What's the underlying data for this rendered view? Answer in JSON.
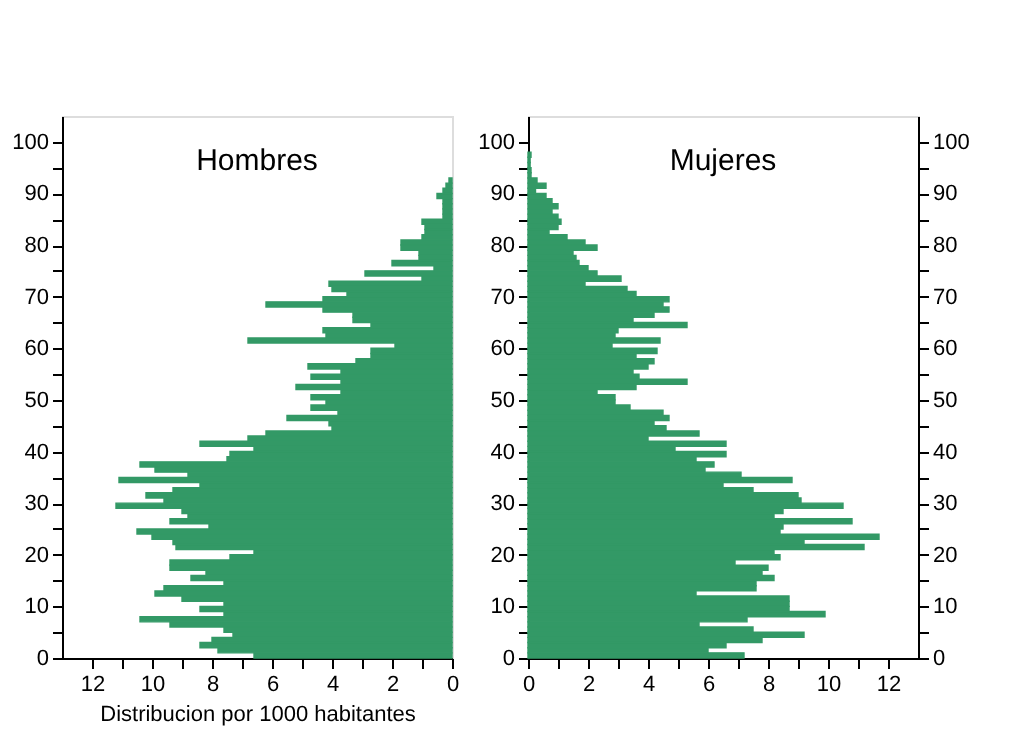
{
  "chart_data": [
    {
      "type": "bar",
      "orientation": "horizontal",
      "title": "Hombres",
      "xlabel": "Distribucion por 1000 habitantes",
      "x": [
        0,
        1,
        2,
        3,
        4,
        5,
        6,
        7,
        8,
        9,
        10,
        11,
        12,
        13,
        14,
        15,
        16,
        17,
        18,
        19,
        20,
        21,
        22,
        23,
        24,
        25,
        26,
        27,
        28,
        29,
        30,
        31,
        32,
        33,
        34,
        35,
        36,
        37,
        38,
        39,
        40,
        41,
        42,
        43,
        44,
        45,
        46,
        47,
        48,
        49,
        50,
        51,
        52,
        53,
        54,
        55,
        56,
        57,
        58,
        59,
        60,
        61,
        62,
        63,
        64,
        65,
        66,
        67,
        68,
        69,
        70,
        71,
        72,
        73,
        74,
        75,
        76,
        77,
        78,
        79,
        80,
        81,
        82,
        83,
        84,
        85,
        86,
        87,
        88,
        89,
        90,
        91,
        92
      ],
      "series": [
        {
          "color": "#339966",
          "values": [
            6.6,
            7.8,
            8.4,
            8.0,
            7.3,
            7.6,
            9.4,
            10.4,
            7.6,
            8.4,
            7.6,
            9.0,
            9.9,
            9.6,
            7.6,
            8.7,
            8.2,
            9.4,
            9.4,
            7.4,
            6.6,
            9.2,
            9.3,
            10.0,
            10.5,
            8.1,
            9.4,
            8.8,
            9.0,
            11.2,
            9.6,
            10.2,
            9.3,
            8.4,
            11.1,
            8.8,
            9.9,
            10.4,
            7.5,
            7.4,
            6.6,
            8.4,
            6.8,
            6.2,
            4.0,
            4.1,
            5.5,
            3.8,
            4.7,
            4.2,
            4.7,
            3.7,
            5.2,
            3.7,
            4.7,
            3.7,
            4.8,
            3.2,
            2.7,
            2.7,
            1.9,
            6.8,
            4.2,
            4.3,
            2.7,
            3.3,
            3.3,
            4.3,
            6.2,
            4.3,
            3.5,
            4.0,
            4.1,
            1.0,
            2.9,
            0.6,
            2.0,
            1.1,
            1.1,
            1.7,
            1.7,
            1.0,
            0.9,
            0.9,
            1.0,
            0.3,
            0.3,
            0.3,
            0.3,
            0.5,
            0.3,
            0.2,
            0.1
          ]
        }
      ],
      "xlim": [
        13,
        0
      ],
      "xticks": [
        12,
        {
          "value": 11,
          "label": null
        },
        10,
        {
          "value": 9,
          "label": null
        },
        8,
        {
          "value": 7,
          "label": null
        },
        6,
        {
          "value": 5,
          "label": null
        },
        4,
        {
          "value": 3,
          "label": null
        },
        2,
        {
          "value": 1,
          "label": null
        },
        0
      ],
      "ylim": [
        0,
        105
      ],
      "yticks": [
        0,
        {
          "value": 5,
          "label": null
        },
        10,
        {
          "value": 15,
          "label": null
        },
        20,
        {
          "value": 25,
          "label": null
        },
        30,
        {
          "value": 35,
          "label": null
        },
        40,
        {
          "value": 45,
          "label": null
        },
        50,
        {
          "value": 55,
          "label": null
        },
        60,
        {
          "value": 65,
          "label": null
        },
        70,
        {
          "value": 75,
          "label": null
        },
        80,
        {
          "value": 85,
          "label": null
        },
        90,
        {
          "value": 95,
          "label": null
        },
        100
      ],
      "grid": false,
      "legend": false
    },
    {
      "type": "bar",
      "orientation": "horizontal",
      "title": "Mujeres",
      "x": [
        0,
        1,
        2,
        3,
        4,
        5,
        6,
        7,
        8,
        9,
        10,
        11,
        12,
        13,
        14,
        15,
        16,
        17,
        18,
        19,
        20,
        21,
        22,
        23,
        24,
        25,
        26,
        27,
        28,
        29,
        30,
        31,
        32,
        33,
        34,
        35,
        36,
        37,
        38,
        39,
        40,
        41,
        42,
        43,
        44,
        45,
        46,
        47,
        48,
        49,
        50,
        51,
        52,
        53,
        54,
        55,
        56,
        57,
        58,
        59,
        60,
        61,
        62,
        63,
        64,
        65,
        66,
        67,
        68,
        69,
        70,
        71,
        72,
        73,
        74,
        75,
        76,
        77,
        78,
        79,
        80,
        81,
        82,
        83,
        84,
        85,
        86,
        87,
        88,
        89,
        90,
        91,
        92,
        93,
        94,
        95,
        96,
        97
      ],
      "series": [
        {
          "color": "#339966",
          "values": [
            7.2,
            6.0,
            6.6,
            7.8,
            9.2,
            7.5,
            5.7,
            7.3,
            9.9,
            8.7,
            8.7,
            8.7,
            5.6,
            7.6,
            7.6,
            8.2,
            7.8,
            8.0,
            6.9,
            8.4,
            8.2,
            11.2,
            9.2,
            11.7,
            8.4,
            8.5,
            10.8,
            8.2,
            8.5,
            10.5,
            9.1,
            9.0,
            7.5,
            6.5,
            8.8,
            7.1,
            5.9,
            6.2,
            5.6,
            6.6,
            4.9,
            6.6,
            4.0,
            5.7,
            4.6,
            4.2,
            4.7,
            4.5,
            3.4,
            2.9,
            2.9,
            2.3,
            3.6,
            5.3,
            3.7,
            3.5,
            4.0,
            4.2,
            3.6,
            4.3,
            2.8,
            4.4,
            2.9,
            3.0,
            5.3,
            3.5,
            4.2,
            4.7,
            4.5,
            4.7,
            3.6,
            3.3,
            1.9,
            3.1,
            2.3,
            2.0,
            1.7,
            1.6,
            1.5,
            2.3,
            1.9,
            1.3,
            0.7,
            1.0,
            1.1,
            1.0,
            0.8,
            1.0,
            0.8,
            0.6,
            0.25,
            0.6,
            0.3,
            0.1,
            0.1,
            0.07,
            0.07,
            0.1
          ]
        }
      ],
      "xlim": [
        0,
        13
      ],
      "xticks": [
        0,
        {
          "value": 1,
          "label": null
        },
        2,
        {
          "value": 3,
          "label": null
        },
        4,
        {
          "value": 5,
          "label": null
        },
        6,
        {
          "value": 7,
          "label": null
        },
        8,
        {
          "value": 9,
          "label": null
        },
        10,
        {
          "value": 11,
          "label": null
        },
        12
      ],
      "ylim": [
        0,
        105
      ],
      "yticks": [
        0,
        {
          "value": 5,
          "label": null
        },
        10,
        {
          "value": 15,
          "label": null
        },
        20,
        {
          "value": 25,
          "label": null
        },
        30,
        {
          "value": 35,
          "label": null
        },
        40,
        {
          "value": 45,
          "label": null
        },
        50,
        {
          "value": 55,
          "label": null
        },
        60,
        {
          "value": 65,
          "label": null
        },
        70,
        {
          "value": 75,
          "label": null
        },
        80,
        {
          "value": 85,
          "label": null
        },
        90,
        {
          "value": 95,
          "label": null
        },
        100
      ],
      "y2lim": [
        0,
        105
      ],
      "y2ticks": [
        0,
        {
          "value": 5,
          "label": null
        },
        10,
        {
          "value": 15,
          "label": null
        },
        20,
        {
          "value": 25,
          "label": null
        },
        30,
        {
          "value": 35,
          "label": null
        },
        40,
        {
          "value": 45,
          "label": null
        },
        50,
        {
          "value": 55,
          "label": null
        },
        60,
        {
          "value": 65,
          "label": null
        },
        70,
        {
          "value": 75,
          "label": null
        },
        80,
        {
          "value": 85,
          "label": null
        },
        90,
        {
          "value": 95,
          "label": null
        },
        100
      ],
      "grid": false,
      "legend": false
    }
  ]
}
